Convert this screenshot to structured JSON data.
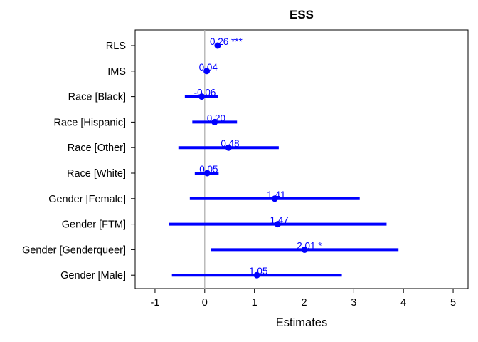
{
  "chart_data": {
    "type": "forest",
    "title": "ESS",
    "xlabel": "Estimates",
    "xlim": [
      -1.4,
      5.3
    ],
    "xticks": [
      -1,
      0,
      1,
      2,
      3,
      4,
      5
    ],
    "xtick_labels": [
      "-1",
      "0",
      "1",
      "2",
      "3",
      "4",
      "5"
    ],
    "reference_line": 0,
    "point_color": "#0000ff",
    "reference_color": "#b0b0b0",
    "terms": [
      {
        "label": "RLS",
        "estimate": 0.26,
        "ci": [
          0.26,
          0.26
        ],
        "text": "0.26 ***"
      },
      {
        "label": "IMS",
        "estimate": 0.04,
        "ci": [
          0.04,
          0.04
        ],
        "text": "0.04"
      },
      {
        "label": "Race [Black]",
        "estimate": -0.06,
        "ci": [
          -0.4,
          0.27
        ],
        "text": "-0.06"
      },
      {
        "label": "Race [Hispanic]",
        "estimate": 0.2,
        "ci": [
          -0.25,
          0.65
        ],
        "text": "0.20"
      },
      {
        "label": "Race [Other]",
        "estimate": 0.48,
        "ci": [
          -0.53,
          1.49
        ],
        "text": "0.48"
      },
      {
        "label": "Race [White]",
        "estimate": 0.05,
        "ci": [
          -0.2,
          0.28
        ],
        "text": "0.05"
      },
      {
        "label": "Gender [Female]",
        "estimate": 1.41,
        "ci": [
          -0.3,
          3.12
        ],
        "text": "1.41"
      },
      {
        "label": "Gender [FTM]",
        "estimate": 1.47,
        "ci": [
          -0.72,
          3.66
        ],
        "text": "1.47"
      },
      {
        "label": "Gender [Genderqueer]",
        "estimate": 2.01,
        "ci": [
          0.12,
          3.9
        ],
        "text": "2.01 *"
      },
      {
        "label": "Gender [Male]",
        "estimate": 1.05,
        "ci": [
          -0.66,
          2.76
        ],
        "text": "1.05"
      }
    ]
  }
}
